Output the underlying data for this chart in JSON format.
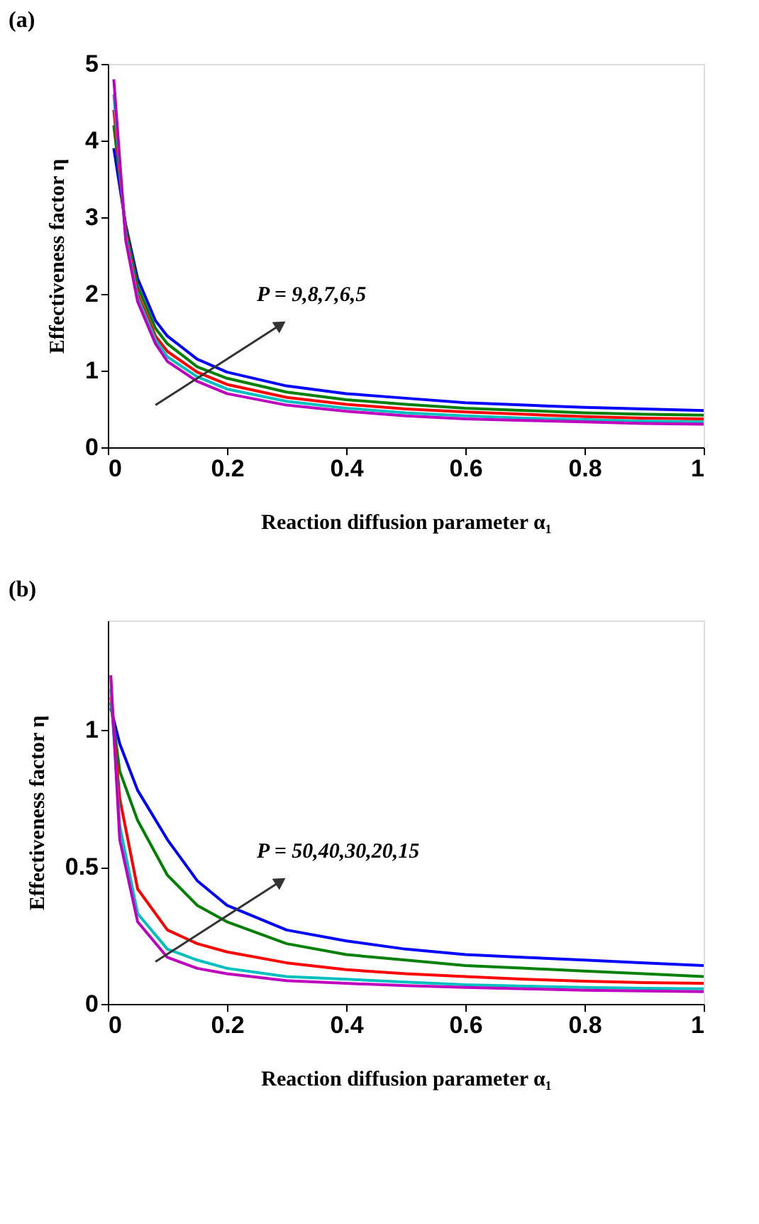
{
  "chart_data": [
    {
      "type": "line",
      "title": "(a)",
      "xlabel": "Reaction diffusion parameter α₁",
      "ylabel": "Effectiveness factor η",
      "xlim": [
        0,
        1
      ],
      "ylim": [
        0,
        5
      ],
      "xticks": [
        0,
        0.2,
        0.4,
        0.6,
        0.8,
        1
      ],
      "yticks": [
        0,
        1,
        2,
        3,
        4,
        5
      ],
      "grid": false,
      "legend": false,
      "annotations": [
        "P = 9,8,7,6,5"
      ],
      "x": [
        0.01,
        0.03,
        0.05,
        0.08,
        0.1,
        0.15,
        0.2,
        0.3,
        0.4,
        0.5,
        0.6,
        0.7,
        0.8,
        0.9,
        1.0
      ],
      "series": [
        {
          "color": "#0000ff",
          "values": [
            3.9,
            2.9,
            2.2,
            1.65,
            1.45,
            1.15,
            0.98,
            0.8,
            0.7,
            0.64,
            0.58,
            0.55,
            0.52,
            0.5,
            0.48
          ]
        },
        {
          "color": "#008000",
          "values": [
            4.2,
            2.85,
            2.1,
            1.55,
            1.35,
            1.05,
            0.9,
            0.72,
            0.62,
            0.56,
            0.51,
            0.48,
            0.45,
            0.43,
            0.42
          ]
        },
        {
          "color": "#ff0000",
          "values": [
            4.4,
            2.8,
            2.0,
            1.45,
            1.25,
            0.98,
            0.82,
            0.65,
            0.56,
            0.5,
            0.46,
            0.43,
            0.4,
            0.38,
            0.37
          ]
        },
        {
          "color": "#00bfbf",
          "values": [
            4.6,
            2.75,
            1.95,
            1.4,
            1.18,
            0.92,
            0.76,
            0.6,
            0.51,
            0.45,
            0.41,
            0.38,
            0.36,
            0.34,
            0.33
          ]
        },
        {
          "color": "#bf00bf",
          "values": [
            4.8,
            2.7,
            1.9,
            1.35,
            1.12,
            0.86,
            0.7,
            0.55,
            0.47,
            0.41,
            0.37,
            0.35,
            0.33,
            0.31,
            0.3
          ]
        }
      ]
    },
    {
      "type": "line",
      "title": "(b)",
      "xlabel": "Reaction diffusion parameter α₁",
      "ylabel": "Effectiveness factor η",
      "xlim": [
        0,
        1
      ],
      "ylim": [
        0,
        1.4
      ],
      "xticks": [
        0,
        0.2,
        0.4,
        0.6,
        0.8,
        1
      ],
      "yticks": [
        0,
        0.5,
        1
      ],
      "grid": false,
      "legend": false,
      "annotations": [
        "P = 50,40,30,20,15"
      ],
      "x": [
        0.005,
        0.02,
        0.05,
        0.1,
        0.15,
        0.2,
        0.3,
        0.4,
        0.5,
        0.6,
        0.7,
        0.8,
        0.9,
        1.0
      ],
      "series": [
        {
          "color": "#0000ff",
          "values": [
            1.08,
            0.95,
            0.78,
            0.6,
            0.45,
            0.36,
            0.27,
            0.23,
            0.2,
            0.18,
            0.17,
            0.16,
            0.15,
            0.14
          ]
        },
        {
          "color": "#008000",
          "values": [
            1.1,
            0.85,
            0.67,
            0.47,
            0.36,
            0.3,
            0.22,
            0.18,
            0.16,
            0.14,
            0.13,
            0.12,
            0.11,
            0.1
          ]
        },
        {
          "color": "#ff0000",
          "values": [
            1.12,
            0.75,
            0.42,
            0.27,
            0.22,
            0.19,
            0.15,
            0.125,
            0.11,
            0.1,
            0.09,
            0.083,
            0.078,
            0.075
          ]
        },
        {
          "color": "#00bfbf",
          "values": [
            1.15,
            0.65,
            0.33,
            0.2,
            0.16,
            0.13,
            0.1,
            0.09,
            0.08,
            0.07,
            0.065,
            0.06,
            0.057,
            0.055
          ]
        },
        {
          "color": "#bf00bf",
          "values": [
            1.2,
            0.6,
            0.3,
            0.17,
            0.13,
            0.11,
            0.085,
            0.075,
            0.067,
            0.06,
            0.055,
            0.05,
            0.047,
            0.045
          ]
        }
      ]
    }
  ]
}
